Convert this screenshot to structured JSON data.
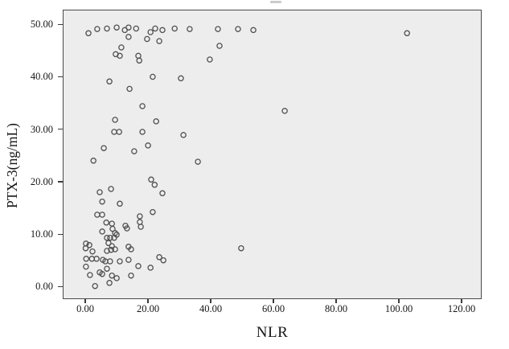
{
  "chart_data": {
    "type": "scatter",
    "title": "",
    "xlabel": "NLR",
    "ylabel": "PTX-3(ng/mL)",
    "legend": "none",
    "grid": false,
    "plot_bg": "#ededed",
    "border_color": "#4a4a4a",
    "marker": {
      "shape": "open-circle",
      "stroke": "#4f4f4f",
      "fill": "none",
      "radius_px": 3.1
    },
    "xlim": [
      -7.2,
      126.4
    ],
    "ylim": [
      -2.4,
      52.8
    ],
    "x_ticks": [
      {
        "value": 0,
        "label": "0.00"
      },
      {
        "value": 20,
        "label": "20.00"
      },
      {
        "value": 40,
        "label": "40.00"
      },
      {
        "value": 60,
        "label": "60.00"
      },
      {
        "value": 80,
        "label": "80.00"
      },
      {
        "value": 100,
        "label": "100.00"
      },
      {
        "value": 120,
        "label": "120.00"
      }
    ],
    "y_ticks": [
      {
        "value": 0,
        "label": "0.00"
      },
      {
        "value": 10,
        "label": "10.00"
      },
      {
        "value": 20,
        "label": "20.00"
      },
      {
        "value": 30,
        "label": "30.00"
      },
      {
        "value": 40,
        "label": "40.00"
      },
      {
        "value": 50,
        "label": "50.00"
      }
    ],
    "points": [
      [
        1.0,
        48.3
      ],
      [
        3.8,
        49.1
      ],
      [
        6.9,
        49.2
      ],
      [
        10.0,
        49.4
      ],
      [
        12.6,
        48.9
      ],
      [
        13.8,
        49.4
      ],
      [
        16.2,
        49.2
      ],
      [
        20.8,
        48.5
      ],
      [
        22.3,
        49.2
      ],
      [
        24.6,
        48.9
      ],
      [
        28.5,
        49.2
      ],
      [
        33.3,
        49.1
      ],
      [
        42.3,
        49.1
      ],
      [
        48.7,
        49.1
      ],
      [
        53.6,
        48.9
      ],
      [
        102.6,
        48.3
      ],
      [
        13.8,
        47.6
      ],
      [
        19.7,
        47.2
      ],
      [
        23.6,
        46.8
      ],
      [
        42.8,
        45.9
      ],
      [
        11.5,
        45.6
      ],
      [
        9.7,
        44.3
      ],
      [
        11.0,
        44.0
      ],
      [
        16.9,
        44.0
      ],
      [
        17.2,
        43.1
      ],
      [
        39.7,
        43.3
      ],
      [
        7.7,
        39.1
      ],
      [
        21.5,
        40.0
      ],
      [
        30.5,
        39.7
      ],
      [
        14.1,
        37.7
      ],
      [
        18.2,
        34.4
      ],
      [
        63.6,
        33.5
      ],
      [
        9.5,
        31.8
      ],
      [
        22.6,
        31.5
      ],
      [
        9.2,
        29.5
      ],
      [
        10.8,
        29.5
      ],
      [
        18.2,
        29.5
      ],
      [
        31.3,
        28.9
      ],
      [
        5.9,
        26.4
      ],
      [
        2.6,
        24.0
      ],
      [
        15.6,
        25.8
      ],
      [
        20.0,
        26.9
      ],
      [
        35.9,
        23.8
      ],
      [
        21.0,
        20.4
      ],
      [
        22.1,
        19.4
      ],
      [
        24.6,
        17.8
      ],
      [
        4.6,
        18.0
      ],
      [
        8.2,
        18.6
      ],
      [
        5.4,
        16.2
      ],
      [
        11.0,
        15.8
      ],
      [
        3.8,
        13.7
      ],
      [
        5.4,
        13.7
      ],
      [
        21.5,
        14.2
      ],
      [
        17.4,
        13.4
      ],
      [
        6.7,
        12.2
      ],
      [
        8.5,
        12.0
      ],
      [
        12.8,
        11.6
      ],
      [
        13.3,
        11.1
      ],
      [
        17.4,
        12.3
      ],
      [
        17.7,
        11.4
      ],
      [
        5.4,
        10.5
      ],
      [
        8.7,
        11.0
      ],
      [
        9.5,
        10.2
      ],
      [
        6.9,
        9.3
      ],
      [
        7.9,
        9.3
      ],
      [
        9.2,
        9.3
      ],
      [
        10.0,
        9.9
      ],
      [
        0.2,
        8.2
      ],
      [
        1.3,
        7.9
      ],
      [
        0.1,
        7.3
      ],
      [
        7.4,
        8.3
      ],
      [
        8.5,
        7.7
      ],
      [
        8.2,
        7.0
      ],
      [
        13.8,
        7.6
      ],
      [
        49.7,
        7.3
      ],
      [
        2.3,
        6.7
      ],
      [
        6.9,
        6.8
      ],
      [
        9.5,
        7.1
      ],
      [
        14.6,
        7.1
      ],
      [
        0.3,
        5.3
      ],
      [
        2.1,
        5.3
      ],
      [
        3.6,
        5.3
      ],
      [
        5.6,
        5.1
      ],
      [
        6.4,
        4.8
      ],
      [
        7.9,
        4.8
      ],
      [
        11.0,
        4.8
      ],
      [
        13.8,
        5.1
      ],
      [
        16.9,
        3.9
      ],
      [
        20.8,
        3.6
      ],
      [
        23.6,
        5.6
      ],
      [
        24.9,
        5.0
      ],
      [
        0.2,
        3.8
      ],
      [
        1.5,
        2.2
      ],
      [
        4.6,
        2.7
      ],
      [
        5.4,
        2.4
      ],
      [
        6.9,
        3.4
      ],
      [
        8.5,
        2.1
      ],
      [
        10.0,
        1.6
      ],
      [
        14.6,
        2.1
      ],
      [
        3.1,
        0.1
      ],
      [
        7.7,
        0.7
      ]
    ]
  }
}
